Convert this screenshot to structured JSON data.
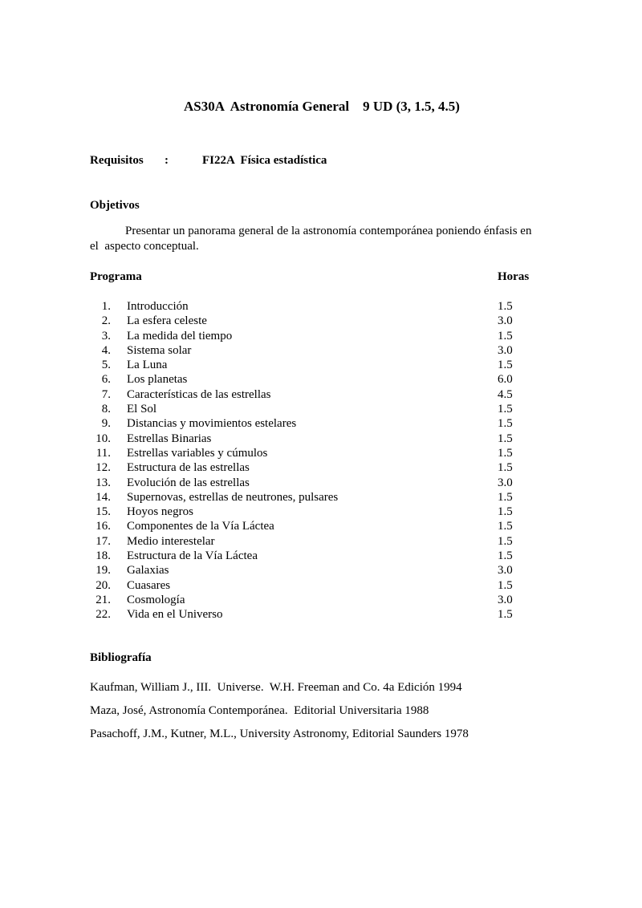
{
  "doc": {
    "title": "AS30A  Astronomía General    9 UD (3, 1.5, 4.5)"
  },
  "requisitos": {
    "label": "Requisitos",
    "colon": ":",
    "value": "FI22A  Física estadística"
  },
  "objetivos": {
    "heading": "Objetivos",
    "text": "Presentar un panorama general de la astronomía contemporánea poniendo énfasis en\nel  aspecto conceptual."
  },
  "programa": {
    "heading": "Programa",
    "hours_header": "Horas",
    "items": [
      {
        "num": "1.",
        "topic": "Introducción",
        "hours": "1.5"
      },
      {
        "num": "2.",
        "topic": "La esfera celeste",
        "hours": "3.0"
      },
      {
        "num": "3.",
        "topic": "La medida del tiempo",
        "hours": "1.5"
      },
      {
        "num": "4.",
        "topic": "Sistema solar",
        "hours": "3.0"
      },
      {
        "num": "5.",
        "topic": "La Luna",
        "hours": "1.5"
      },
      {
        "num": "6.",
        "topic": "Los planetas",
        "hours": "6.0"
      },
      {
        "num": "7.",
        "topic": "Características de las estrellas",
        "hours": "4.5"
      },
      {
        "num": "8.",
        "topic": "El Sol",
        "hours": "1.5"
      },
      {
        "num": "9.",
        "topic": "Distancias y movimientos estelares",
        "hours": "1.5"
      },
      {
        "num": "10.",
        "topic": "Estrellas Binarias",
        "hours": "1.5"
      },
      {
        "num": "11.",
        "topic": "Estrellas variables y cúmulos",
        "hours": "1.5"
      },
      {
        "num": "12.",
        "topic": "Estructura de las estrellas",
        "hours": "1.5"
      },
      {
        "num": "13.",
        "topic": "Evolución de las estrellas",
        "hours": "3.0"
      },
      {
        "num": "14.",
        "topic": "Supernovas, estrellas de neutrones, pulsares",
        "hours": "1.5"
      },
      {
        "num": "15.",
        "topic": "Hoyos negros",
        "hours": "1.5"
      },
      {
        "num": "16.",
        "topic": "Componentes de la Vía Láctea",
        "hours": "1.5"
      },
      {
        "num": "17.",
        "topic": "Medio interestelar",
        "hours": "1.5"
      },
      {
        "num": "18.",
        "topic": "Estructura de la Vía Láctea",
        "hours": "1.5"
      },
      {
        "num": "19.",
        "topic": "Galaxias",
        "hours": "3.0"
      },
      {
        "num": "20.",
        "topic": "Cuasares",
        "hours": "1.5"
      },
      {
        "num": "21.",
        "topic": "Cosmología",
        "hours": "3.0"
      },
      {
        "num": "22.",
        "topic": "Vida en el Universo",
        "hours": "1.5"
      }
    ]
  },
  "bibliografia": {
    "heading": "Bibliografía",
    "entries": [
      "Kaufman, William J., III.  Universe.  W.H. Freeman and Co. 4a Edición 1994",
      "Maza, José, Astronomía Contemporánea.  Editorial Universitaria 1988",
      "Pasachoff, J.M., Kutner, M.L., University Astronomy, Editorial Saunders 1978"
    ]
  }
}
